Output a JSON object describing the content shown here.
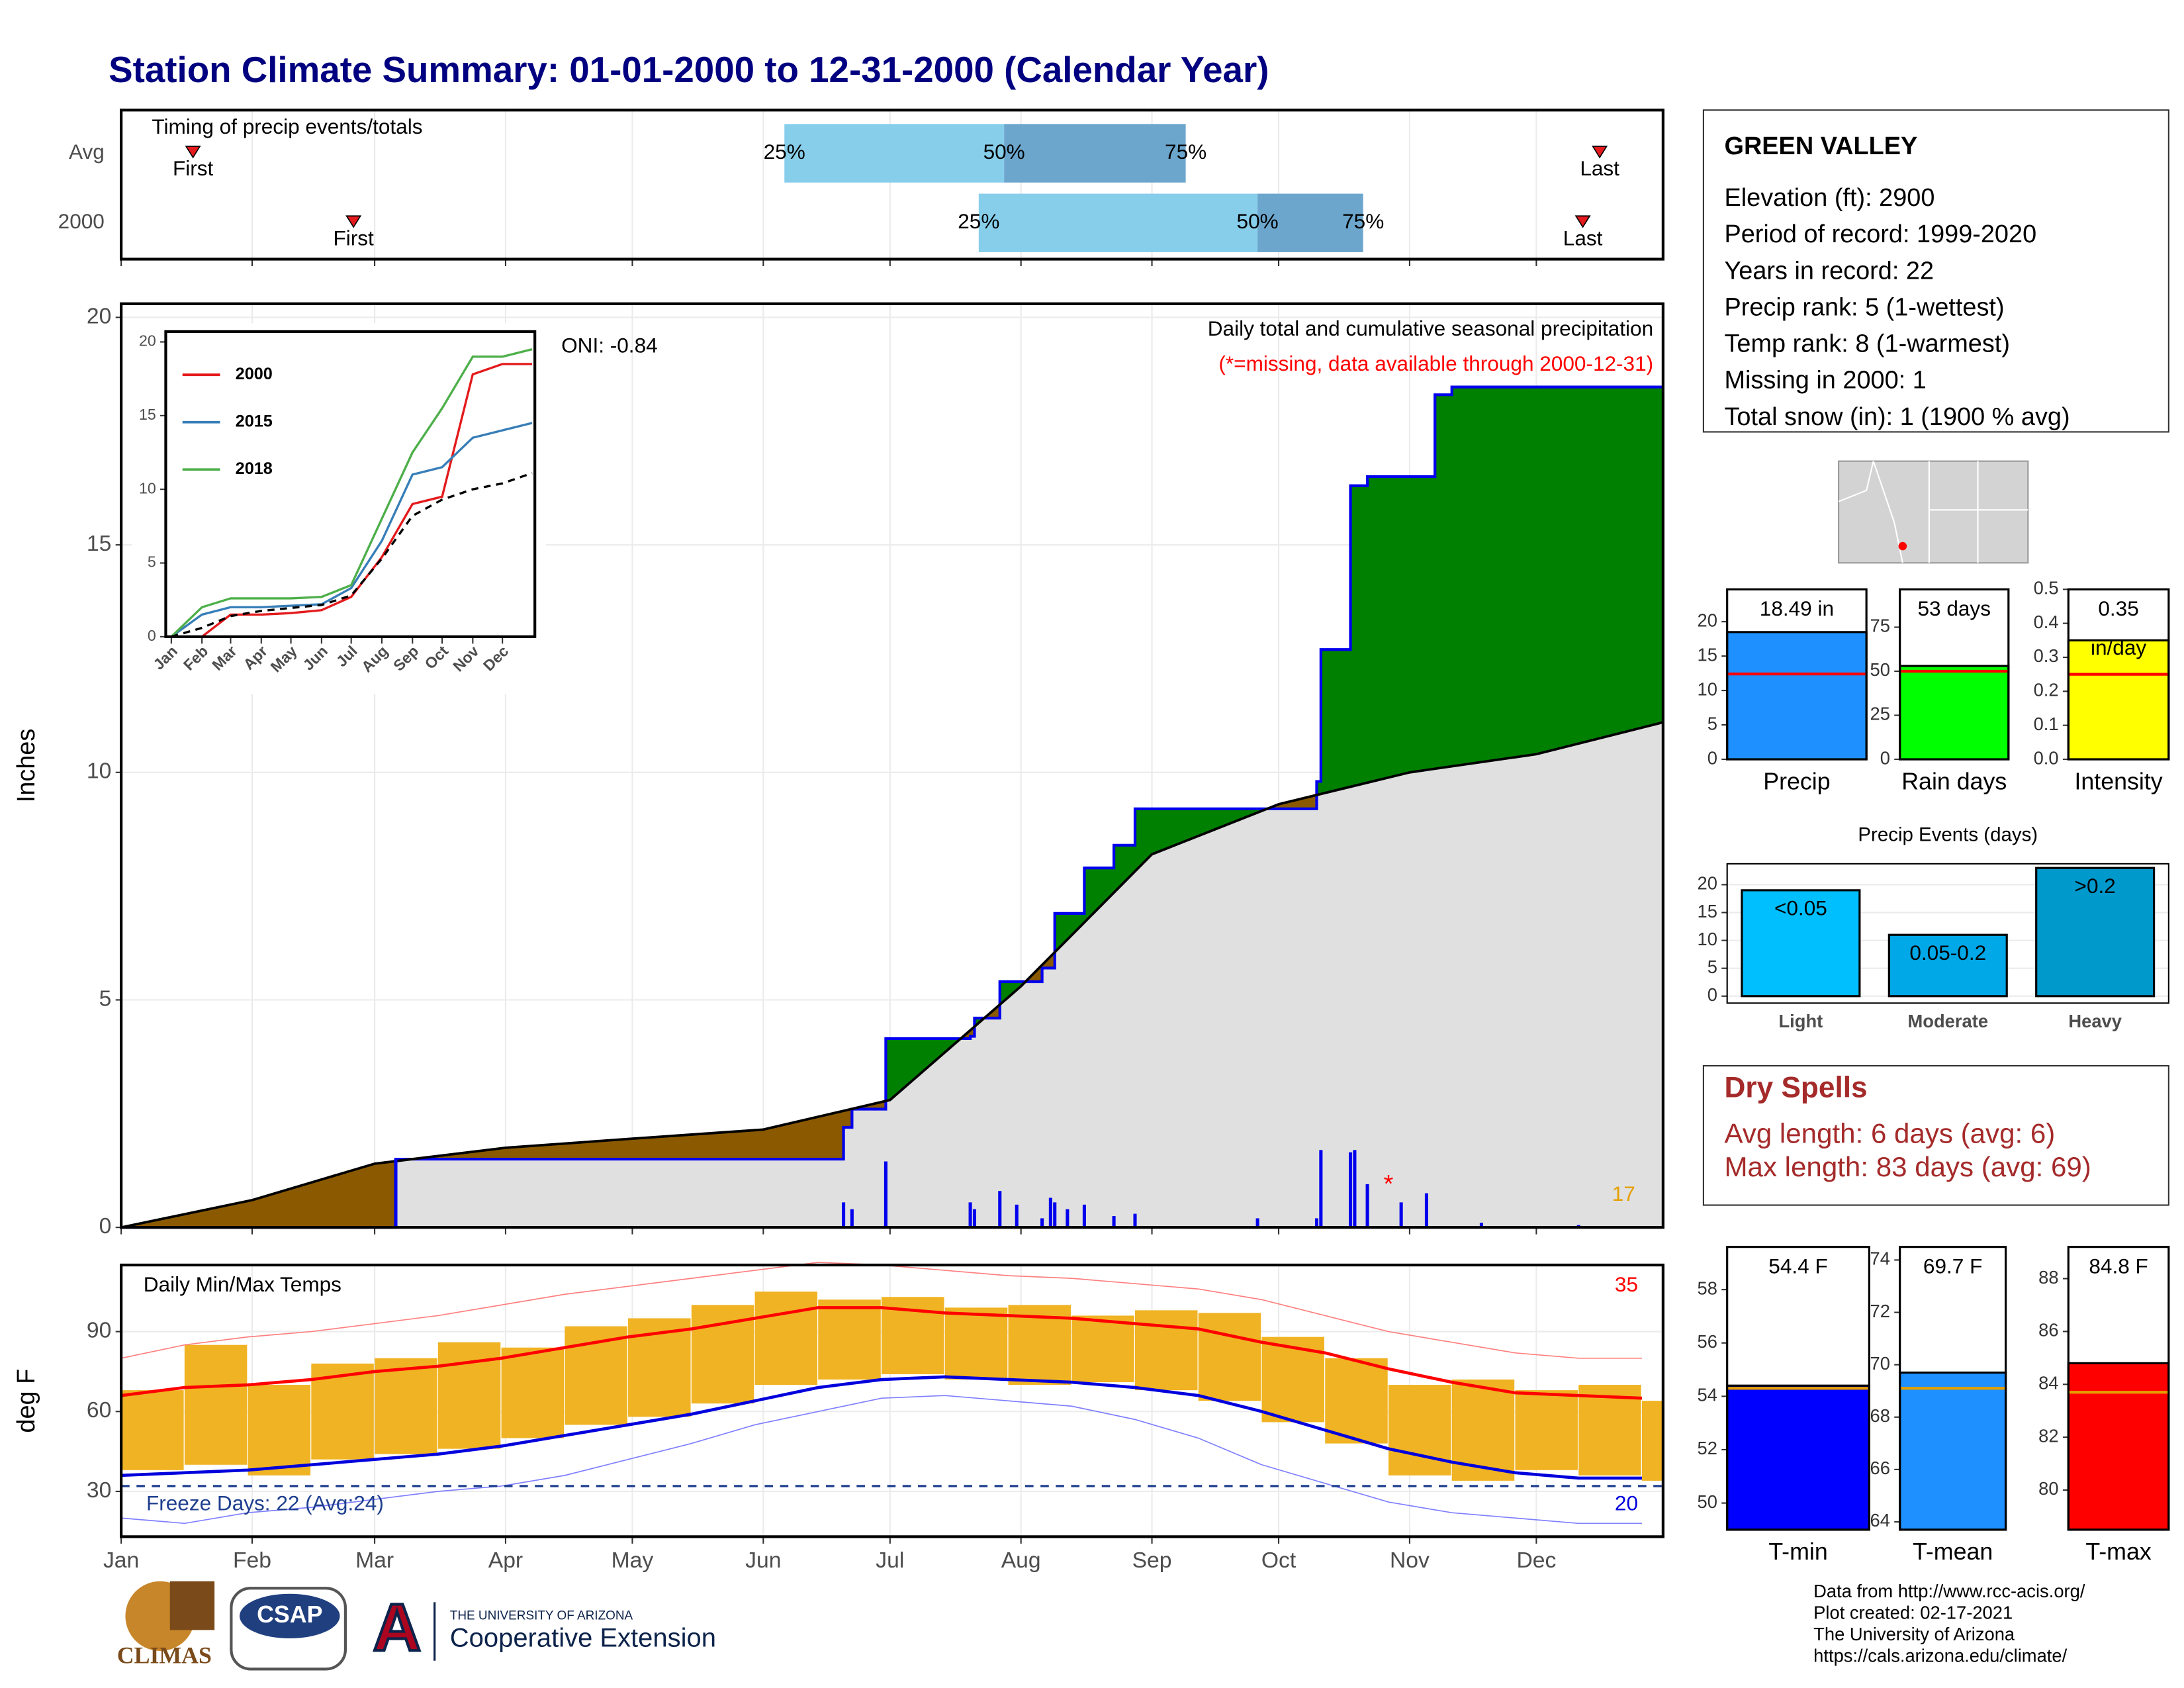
{
  "title": "Station Climate Summary: 01-01-2000 to 12-31-2000 (Calendar Year)",
  "station": {
    "name": "GREEN VALLEY",
    "lines": [
      "Elevation (ft): 2900",
      "Period of record: 1999-2020",
      "Years in record: 22",
      "Precip rank: 5 (1-wettest)",
      "Temp rank: 8 (1-warmest)",
      "Missing in 2000: 1",
      "Total snow (in): 1 (1900 % avg)"
    ]
  },
  "dry_spells": {
    "title": "Dry Spells",
    "lines": [
      "Avg length: 6 days (avg: 6)",
      "Max length: 83 days (avg: 69)"
    ]
  },
  "credits": [
    "Data from http://www.rcc-acis.org/",
    "Plot created: 02-17-2021",
    "The University of Arizona",
    "https://cals.arizona.edu/climate/"
  ],
  "logos": {
    "climas": "CLIMAS",
    "csap": "CSAP",
    "ua_letter": "A",
    "ua_name": "THE UNIVERSITY OF ARIZONA",
    "extension": "Cooperative Extension"
  },
  "chart_data": [
    {
      "type": "timing",
      "title": "Timing of precip events/totals",
      "xlim": [
        1,
        366
      ],
      "xticks": [
        1,
        32,
        61,
        92,
        122,
        153,
        183,
        214,
        245,
        275,
        306,
        336
      ],
      "labels": {
        "first": "First",
        "q25": "25%",
        "q50": "50%",
        "q75": "75%",
        "last": "Last"
      },
      "colors": {
        "lower": "#87ceeb",
        "upper": "#6ca6cd",
        "marker": "#e41a1c"
      },
      "rows": [
        {
          "name": "Avg",
          "first": 18,
          "q25": 158,
          "q50": 210,
          "q75": 253,
          "last": 351
        },
        {
          "name": "2000",
          "first": 56,
          "q25": 204,
          "q50": 270,
          "q75": 295,
          "last": 347
        }
      ]
    },
    {
      "type": "cumulative",
      "ylabel": "Inches",
      "subtitle": "Daily total and cumulative seasonal precipitation",
      "note": "(*=missing, data available through 2000-12-31)",
      "oni": "ONI: -0.84",
      "count_label": "17",
      "xlim": [
        1,
        366
      ],
      "ylim": [
        0,
        20.3
      ],
      "yticks": [
        0,
        5,
        10,
        15,
        20
      ],
      "grid": true,
      "xticks": [
        1,
        32,
        61,
        92,
        122,
        153,
        183,
        214,
        245,
        275,
        306,
        336
      ],
      "above_color": "#008000",
      "below_color": "#8b5a00",
      "base_color": "#e0e0e0",
      "series": [
        {
          "style": "step",
          "color": "#0000ee",
          "x": [
            1,
            66,
            172,
            174,
            182,
            202,
            203,
            209,
            219,
            222,
            229,
            236,
            241,
            262,
            284,
            285,
            292,
            296,
            312,
            316,
            366
          ],
          "values": [
            0,
            1.5,
            2.2,
            2.6,
            4.15,
            4.2,
            4.6,
            5.4,
            5.7,
            6.9,
            7.9,
            8.4,
            9.2,
            9.2,
            9.8,
            12.7,
            16.3,
            16.5,
            18.3,
            18.47,
            18.49
          ]
        },
        {
          "style": "line",
          "color": "#000000",
          "x": [
            1,
            32,
            61,
            92,
            122,
            153,
            183,
            214,
            245,
            275,
            306,
            336,
            366
          ],
          "values": [
            0,
            0.6,
            1.4,
            1.75,
            1.95,
            2.15,
            2.8,
            5.3,
            8.2,
            9.3,
            10.0,
            10.4,
            11.1
          ]
        }
      ],
      "daily": {
        "color": "#0000ee",
        "x": [
          66,
          172,
          174,
          182,
          202,
          203,
          209,
          213,
          219,
          221,
          222,
          225,
          229,
          236,
          241,
          270,
          284,
          285,
          292,
          293,
          296,
          304,
          310,
          323,
          346
        ],
        "values": [
          1.5,
          0.55,
          0.4,
          1.45,
          0.55,
          0.4,
          0.8,
          0.5,
          0.2,
          0.65,
          0.55,
          0.4,
          0.5,
          0.25,
          0.3,
          0.2,
          0.2,
          1.7,
          1.65,
          1.7,
          0.95,
          0.55,
          0.75,
          0.1,
          0.05
        ]
      },
      "missing": {
        "marker": "*",
        "x": [
          301
        ]
      }
    },
    {
      "type": "line",
      "xlim": [
        1,
        366
      ],
      "ylim": [
        0,
        20.7
      ],
      "yticks": [
        0,
        5,
        10,
        15,
        20
      ],
      "xticks": [
        {
          "value": 1,
          "label": "Jan"
        },
        {
          "value": 32,
          "label": "Feb"
        },
        {
          "value": 61,
          "label": "Mar"
        },
        {
          "value": 92,
          "label": "Apr"
        },
        {
          "value": 122,
          "label": "May"
        },
        {
          "value": 153,
          "label": "Jun"
        },
        {
          "value": 183,
          "label": "Jul"
        },
        {
          "value": 214,
          "label": "Aug"
        },
        {
          "value": 245,
          "label": "Sep"
        },
        {
          "value": 275,
          "label": "Oct"
        },
        {
          "value": 306,
          "label": "Nov"
        },
        {
          "value": 336,
          "label": "Dec"
        }
      ],
      "x": [
        1,
        32,
        61,
        92,
        122,
        153,
        183,
        214,
        245,
        275,
        306,
        336,
        366
      ],
      "series": [
        {
          "name": "2000",
          "color": "#e41a1c",
          "values": [
            0,
            0,
            1.5,
            1.5,
            1.6,
            1.8,
            2.7,
            5.4,
            9.0,
            9.5,
            17.8,
            18.5,
            18.5
          ]
        },
        {
          "name": "2015",
          "color": "#377eb8",
          "values": [
            0,
            1.5,
            2.0,
            2.0,
            2.1,
            2.2,
            3.3,
            6.5,
            11.0,
            11.5,
            13.5,
            14.0,
            14.5
          ]
        },
        {
          "name": "2018",
          "color": "#4daf4a",
          "values": [
            0,
            2.0,
            2.6,
            2.6,
            2.6,
            2.7,
            3.5,
            8.0,
            12.5,
            15.5,
            19.0,
            19.0,
            19.5
          ]
        },
        {
          "color": "#000000",
          "dashed": true,
          "values": [
            0,
            0.6,
            1.4,
            1.75,
            1.95,
            2.15,
            2.8,
            5.3,
            8.2,
            9.3,
            10.0,
            10.4,
            11.1
          ]
        }
      ]
    },
    {
      "type": "temperature",
      "title": "Daily Min/Max Temps",
      "ylabel": "deg F",
      "record_high_count": "35",
      "record_low_count": "20",
      "freeze_label": "Freeze Days: 22 (Avg:24)",
      "freeze_threshold": 32,
      "xlim": [
        1,
        366
      ],
      "ylim": [
        13,
        115
      ],
      "yticks": [
        30,
        60,
        90
      ],
      "grid": true,
      "xticks": [
        {
          "value": 1,
          "label": "Jan"
        },
        {
          "value": 32,
          "label": "Feb"
        },
        {
          "value": 61,
          "label": "Mar"
        },
        {
          "value": 92,
          "label": "Apr"
        },
        {
          "value": 122,
          "label": "May"
        },
        {
          "value": 153,
          "label": "Jun"
        },
        {
          "value": 183,
          "label": "Jul"
        },
        {
          "value": 214,
          "label": "Aug"
        },
        {
          "value": 245,
          "label": "Sep"
        },
        {
          "value": 275,
          "label": "Oct"
        },
        {
          "value": 306,
          "label": "Nov"
        },
        {
          "value": 336,
          "label": "Dec"
        }
      ],
      "x": [
        1,
        16,
        31,
        46,
        61,
        76,
        91,
        106,
        121,
        136,
        151,
        166,
        181,
        196,
        211,
        226,
        241,
        256,
        271,
        286,
        301,
        316,
        331,
        346,
        361
      ],
      "colors": {
        "bars": "#f0b323",
        "avg_max": "#ff0000",
        "avg_min": "#0000dd",
        "record_high": "#ff8080",
        "record_low": "#8080ff",
        "freeze": "#1f3f8f",
        "high_count": "#ff0000",
        "low_count": "#0000dd"
      },
      "daily_max": [
        68,
        85,
        70,
        78,
        80,
        86,
        84,
        92,
        95,
        100,
        105,
        102,
        103,
        99,
        100,
        96,
        98,
        97,
        88,
        80,
        70,
        72,
        68,
        70,
        64
      ],
      "daily_min": [
        38,
        40,
        36,
        42,
        44,
        46,
        50,
        55,
        58,
        63,
        70,
        72,
        74,
        72,
        70,
        71,
        68,
        64,
        56,
        48,
        36,
        34,
        38,
        36,
        34
      ],
      "avg_max": [
        66,
        69,
        70,
        72,
        75,
        77,
        80,
        84,
        88,
        91,
        95,
        99,
        99,
        97,
        96,
        95,
        93,
        91,
        86,
        82,
        76,
        71,
        67,
        66,
        65
      ],
      "avg_min": [
        36,
        37,
        38,
        40,
        42,
        44,
        47,
        51,
        55,
        59,
        64,
        69,
        72,
        73,
        72,
        71,
        69,
        66,
        60,
        53,
        46,
        41,
        37,
        35,
        35
      ],
      "record_high": [
        80,
        85,
        88,
        90,
        93,
        96,
        100,
        104,
        107,
        110,
        113,
        116,
        115,
        113,
        111,
        110,
        108,
        106,
        102,
        96,
        90,
        86,
        82,
        80,
        80
      ],
      "record_low": [
        20,
        18,
        22,
        24,
        27,
        30,
        32,
        36,
        42,
        48,
        55,
        60,
        65,
        66,
        64,
        62,
        57,
        50,
        40,
        33,
        26,
        22,
        20,
        18,
        18
      ]
    },
    {
      "type": "bar",
      "categories": [
        "Precip"
      ],
      "values": [
        18.49
      ],
      "value_labels": [
        "18.49 in"
      ],
      "avg": 12.4,
      "avg_color": "#ff0000",
      "color": "#1e90ff",
      "label_position": "top",
      "ylim": [
        0,
        24.7
      ],
      "yticks": [
        0,
        5,
        10,
        15,
        20
      ]
    },
    {
      "type": "bar",
      "categories": [
        "Rain days"
      ],
      "values": [
        53
      ],
      "value_labels": [
        "53 days"
      ],
      "avg": 50,
      "avg_color": "#ff0000",
      "color": "#00ff00",
      "label_position": "top",
      "ylim": [
        0,
        96.5
      ],
      "yticks": [
        0,
        25,
        50,
        75
      ]
    },
    {
      "type": "bar",
      "categories": [
        "Intensity"
      ],
      "values": [
        0.35
      ],
      "value_labels": [
        "0.35"
      ],
      "unit_labels": [
        "in/day"
      ],
      "avg": 0.25,
      "avg_color": "#ff0000",
      "color": "#ffff00",
      "label_position": "top",
      "ylim": [
        0,
        0.5
      ],
      "yticks": [
        {
          "value": 0,
          "label": "0.0"
        },
        0.1,
        0.2,
        0.3,
        0.4,
        0.5
      ]
    },
    {
      "type": "bar",
      "title": "Precip Events (days)",
      "categories": [
        "Light",
        "Moderate",
        "Heavy"
      ],
      "values": [
        19,
        11,
        23
      ],
      "value_labels": [
        "<0.05",
        "0.05-0.2",
        ">0.2"
      ],
      "colors": [
        "#00bfff",
        "#00a8e8",
        "#0099cc"
      ],
      "label_position": "inside",
      "grid": true,
      "ylim": [
        -1.25,
        23.75
      ],
      "yticks": [
        0,
        5,
        10,
        15,
        20
      ]
    },
    {
      "type": "bar",
      "categories": [
        "T-min"
      ],
      "values": [
        54.4
      ],
      "value_labels": [
        "54.4 F"
      ],
      "avg": 54.3,
      "avg_color": "#e69f00",
      "color": "#0000ff",
      "label_position": "top",
      "ylim": [
        49,
        59.6
      ],
      "yticks": [
        50,
        52,
        54,
        56,
        58
      ]
    },
    {
      "type": "bar",
      "categories": [
        "T-mean"
      ],
      "values": [
        69.7
      ],
      "value_labels": [
        "69.7 F"
      ],
      "avg": 69.1,
      "avg_color": "#e69f00",
      "color": "#1e90ff",
      "label_position": "top",
      "ylim": [
        63.7,
        74.5
      ],
      "yticks": [
        64,
        66,
        68,
        70,
        72,
        74
      ]
    },
    {
      "type": "bar",
      "categories": [
        "T-max"
      ],
      "values": [
        84.8
      ],
      "value_labels": [
        "84.8 F"
      ],
      "avg": 83.7,
      "avg_color": "#e69f00",
      "color": "#ff0000",
      "label_position": "top",
      "ylim": [
        78.5,
        89.2
      ],
      "yticks": [
        80,
        82,
        84,
        86,
        88
      ]
    }
  ]
}
